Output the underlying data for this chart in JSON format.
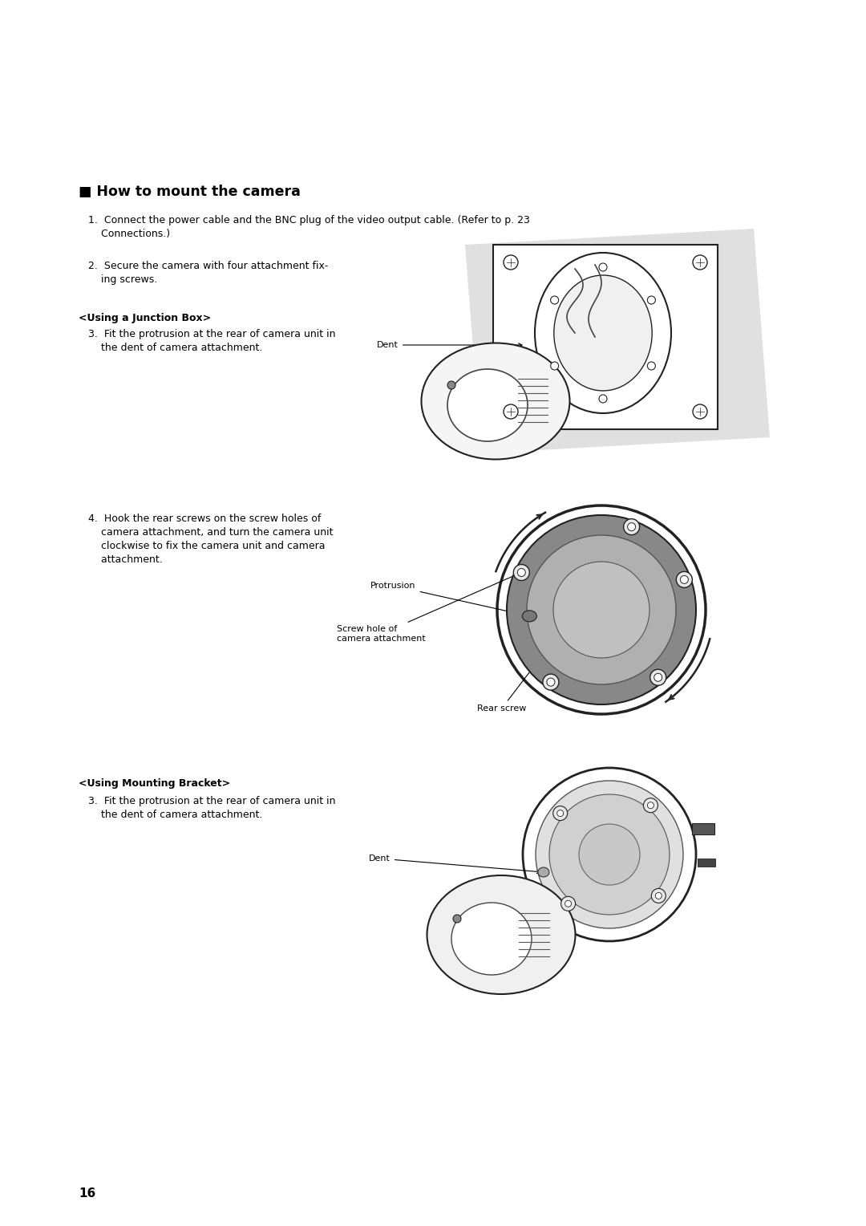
{
  "bg_color": "#ffffff",
  "page_number": "16",
  "title": "■ How to mount the camera",
  "title_fontsize": 12.5,
  "step1_text_line1": "1.  Connect the power cable and the BNC plug of the video output cable. (Refer to p. 23",
  "step1_text_line2": "    Connections.)",
  "step2_text_line1": "2.  Secure the camera with four attachment fix-",
  "step2_text_line2": "    ing screws.",
  "junction_header": "<Using a Junction Box>",
  "step3_text_line1": "3.  Fit the protrusion at the rear of camera unit in",
  "step3_text_line2": "    the dent of camera attachment.",
  "step4_text_line1": "4.  Hook the rear screws on the screw holes of",
  "step4_text_line2": "    camera attachment, and turn the camera unit",
  "step4_text_line3": "    clockwise to fix the camera unit and camera",
  "step4_text_line4": "    attachment.",
  "mounting_header": "<Using Mounting Bracket>",
  "step3b_text_line1": "3.  Fit the protrusion at the rear of camera unit in",
  "step3b_text_line2": "    the dent of camera attachment.",
  "text_fontsize": 9.0,
  "label_fontsize": 8.0,
  "header_fontsize": 9.0,
  "text_color": "#000000",
  "line_color": "#222222",
  "gray_bg": "#e0e0e0",
  "light_gray": "#d8d8d8",
  "mid_gray": "#b0b0b0"
}
